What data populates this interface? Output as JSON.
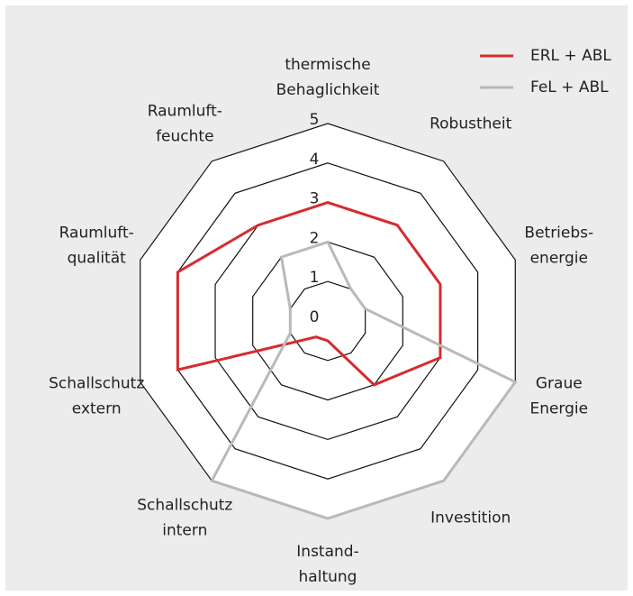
{
  "chart_data": {
    "type": "radar",
    "categories": [
      [
        "thermische",
        "Behaglichkeit"
      ],
      [
        "Robustheit"
      ],
      [
        "Betriebs-",
        "energie"
      ],
      [
        "Graue",
        "Energie"
      ],
      [
        "Investition"
      ],
      [
        "Instand-",
        "haltung"
      ],
      [
        "Schallschutz",
        "intern"
      ],
      [
        "Schallschutz",
        "extern"
      ],
      [
        "Raumluft-",
        "qualität"
      ],
      [
        "Raumluft-",
        "feuchte"
      ]
    ],
    "series": [
      {
        "name": "ERL + ABL",
        "color": "#d62b2f",
        "values": [
          3,
          3,
          3,
          3,
          2,
          0.5,
          0.5,
          4,
          4,
          3
        ]
      },
      {
        "name": "FeL + ABL",
        "color": "#b9b9b9",
        "values": [
          2,
          1,
          1,
          5,
          5,
          5,
          5,
          1,
          1,
          2
        ]
      }
    ],
    "rlim": [
      0,
      5
    ],
    "rticks": [
      0,
      1,
      2,
      3,
      4,
      5
    ],
    "legend": "top-right"
  }
}
